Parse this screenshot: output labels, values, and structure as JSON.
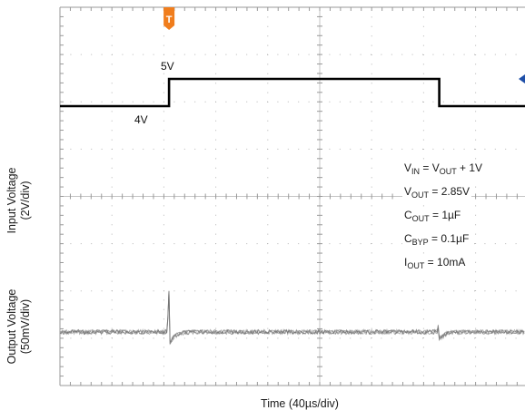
{
  "chart_data": {
    "type": "line",
    "xlabel": "Time (40µs/div)",
    "ylabel_input": [
      "Input Voltage",
      "(2V/div)"
    ],
    "ylabel_output": [
      "Output Voltage",
      "(50mV/div)"
    ],
    "x_divisions": 10,
    "y_divisions": 8,
    "series": [
      {
        "values_in_x_div": [
          [
            0,
            4
          ],
          [
            2.1,
            4
          ],
          [
            2.1,
            5
          ],
          [
            7.3,
            5
          ],
          [
            7.3,
            4
          ],
          [
            10,
            4
          ]
        ],
        "unit": "V",
        "color": "#000000"
      },
      {
        "shape": "noisy flat line with small transients at steps",
        "transient_at_x_div": [
          2.1,
          7.3
        ],
        "color": "#6e6e6e"
      }
    ],
    "annotations": {
      "low_level": "4V",
      "high_level": "5V"
    },
    "conditions": {
      "vin": {
        "a": "V",
        "a_sub": "IN",
        "b": " = V",
        "b_sub": "OUT",
        "c": " + 1V"
      },
      "vout": {
        "a": "V",
        "a_sub": "OUT",
        "b": " = 2.85V"
      },
      "cout": {
        "a": "C",
        "a_sub": "OUT",
        "b": " = 1µF"
      },
      "cbyp": {
        "a": "C",
        "a_sub": "BYP",
        "b": " = 0.1µF"
      },
      "iout": {
        "a": "I",
        "a_sub": "OUT",
        "b": " = 10mA"
      }
    },
    "trigger_marker": {
      "label": "T",
      "color": "#f07d1c"
    },
    "grid": true
  }
}
